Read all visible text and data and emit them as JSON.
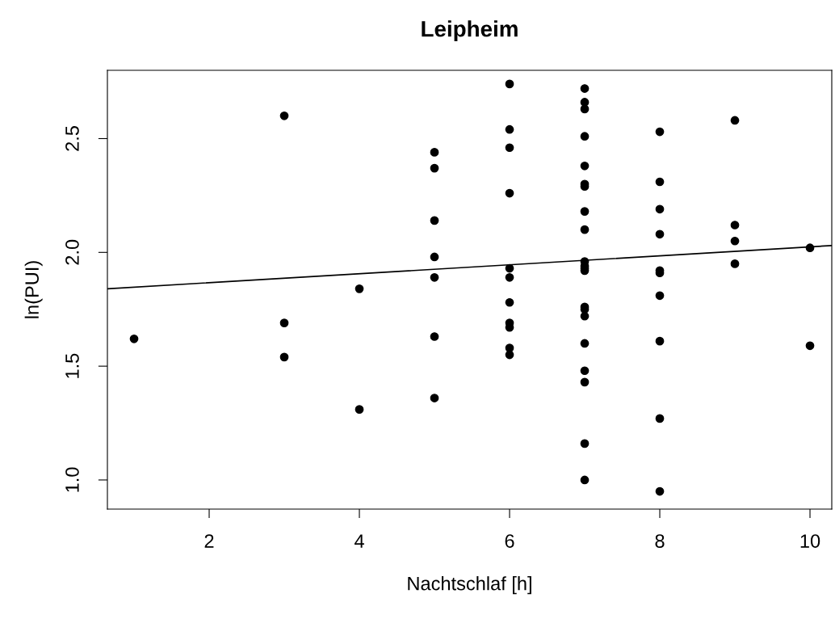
{
  "chart_data": {
    "type": "scatter",
    "title": "Leipheim",
    "xlabel": "Nachtschlaf [h]",
    "ylabel": "ln(PUI)",
    "xlim": [
      0.645,
      10.29
    ],
    "ylim": [
      0.872,
      2.8
    ],
    "xticks": [
      2,
      4,
      6,
      8,
      10
    ],
    "yticks": [
      {
        "value": 1.0,
        "label": "1.0"
      },
      1.5,
      {
        "value": 2.0,
        "label": "2.0"
      },
      2.5
    ],
    "grid": false,
    "series": [
      {
        "marker": "circle",
        "color": "#000000",
        "x": [
          1,
          3,
          3,
          3,
          4,
          4,
          5,
          5,
          5,
          5,
          5,
          5,
          5,
          6,
          6,
          6,
          6,
          6,
          6,
          6,
          6,
          6,
          6,
          6,
          7,
          7,
          7,
          7,
          7,
          7,
          7,
          7,
          7,
          7,
          7,
          7,
          7,
          7,
          7,
          7,
          7,
          7,
          7,
          7,
          7,
          8,
          8,
          8,
          8,
          8,
          8,
          8,
          8,
          8,
          8,
          9,
          9,
          9,
          9,
          10,
          10
        ],
        "values": [
          1.62,
          2.6,
          1.69,
          1.54,
          1.84,
          1.31,
          2.44,
          2.37,
          2.14,
          1.98,
          1.89,
          1.63,
          1.36,
          2.74,
          2.54,
          2.46,
          2.26,
          1.93,
          1.89,
          1.78,
          1.69,
          1.67,
          1.58,
          1.55,
          2.72,
          2.66,
          2.63,
          2.51,
          2.38,
          2.3,
          2.29,
          2.18,
          2.1,
          1.96,
          1.94,
          1.93,
          1.92,
          1.76,
          1.75,
          1.72,
          1.6,
          1.48,
          1.43,
          1.16,
          1.0,
          2.53,
          2.31,
          2.19,
          2.08,
          1.92,
          1.91,
          1.81,
          1.61,
          1.27,
          0.95,
          2.58,
          2.12,
          2.05,
          1.95,
          2.02,
          1.59
        ]
      },
      {
        "type": "line",
        "marker": "none",
        "color": "#000000",
        "x": [
          0.645,
          10.29
        ],
        "values": [
          1.84,
          2.03
        ]
      }
    ]
  }
}
